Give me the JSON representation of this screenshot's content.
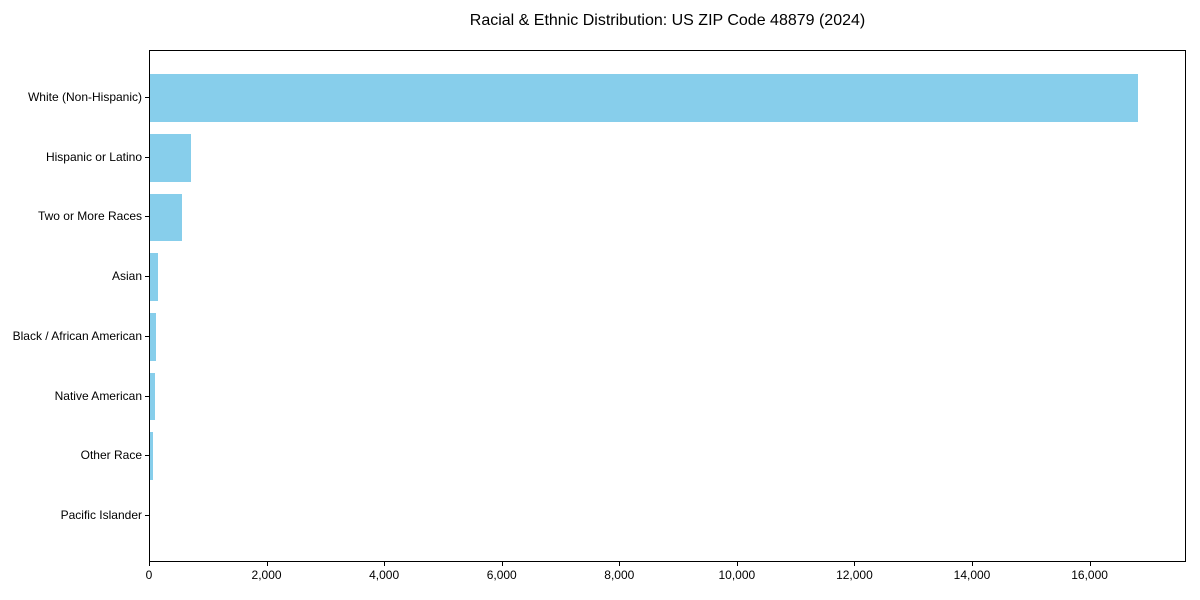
{
  "chart_data": {
    "type": "bar",
    "orientation": "horizontal",
    "title": "Racial & Ethnic Distribution: US ZIP Code 48879 (2024)",
    "categories": [
      "White (Non-Hispanic)",
      "Hispanic or Latino",
      "Two or More Races",
      "Asian",
      "Black / African American",
      "Native American",
      "Other Race",
      "Pacific Islander"
    ],
    "values": [
      16800,
      700,
      545,
      130,
      100,
      90,
      45,
      0
    ],
    "xlabel": "",
    "ylabel": "",
    "xlim": [
      0,
      17640
    ],
    "xticks": [
      0,
      2000,
      4000,
      6000,
      8000,
      10000,
      12000,
      14000,
      16000
    ],
    "xtick_labels": [
      "0",
      "2,000",
      "4,000",
      "6,000",
      "8,000",
      "10,000",
      "12,000",
      "14,000",
      "16,000"
    ],
    "bar_color": "#87CEEB",
    "spine_color": "#000000",
    "text_color": "#000000",
    "background": "#ffffff",
    "grid": false,
    "legend": null
  }
}
